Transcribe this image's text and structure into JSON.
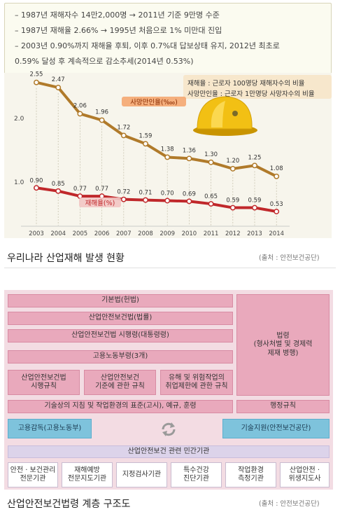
{
  "notes": [
    "– 1987년 재해자수 14만2,000명 → 2011년 기준 9만명 수준",
    "– 1987년 재해율 2.66% → 1995년 처음으로 1% 미만대 진입",
    "– 2003년 0.90%까지 재해율 후퇴, 이후 0.7%대 답보상태 유지, 2012년 최초로",
    "0.59% 달성 후 계속적으로 감소추세(2014년 0.53%)"
  ],
  "legend_box": {
    "line1": "재해율 : 근로자 100명당 재해자수의 비율",
    "line2": "사망만인율 : 근로자 1만명당 사망자수의 비율"
  },
  "colors": {
    "mortality": "#b07a2a",
    "injury": "#c0282b",
    "label_bg": "#f4a26a",
    "diagram_pink": "#e9a9bc",
    "diagram_blue": "#7ec3dc"
  },
  "chart_data": {
    "type": "line",
    "x": [
      "2003",
      "2004",
      "2005",
      "2006",
      "2007",
      "2008",
      "2009",
      "2010",
      "2011",
      "2012",
      "2013",
      "2014"
    ],
    "series": [
      {
        "name": "사망만인율(‱)",
        "values": [
          2.55,
          2.47,
          2.06,
          1.96,
          1.72,
          1.59,
          1.38,
          1.36,
          1.3,
          1.2,
          1.25,
          1.08
        ]
      },
      {
        "name": "재해율(%)",
        "values": [
          0.9,
          0.85,
          0.77,
          0.77,
          0.72,
          0.71,
          0.7,
          0.69,
          0.65,
          0.59,
          0.59,
          0.53
        ]
      }
    ],
    "yticks": [
      "1.0",
      "2.0"
    ],
    "ylim": [
      0.3,
      2.7
    ]
  },
  "caption1": "우리나라 산업재해 발생 현황",
  "source1": "(출처 : 안전보건공단)",
  "diagram": {
    "law": "기본법(헌법)",
    "act": "산업안전보건법(법률)",
    "decree": "산업안전보건법 시행령(대통령령)",
    "rule": "고용노동부령(3개)",
    "rules3": [
      [
        "산업안전보건법",
        "시행규칙"
      ],
      [
        "산업안전보건",
        "기준에 관한 규칙"
      ],
      [
        "유해 및 위험작업의",
        "취업제한에 관한 규칙"
      ]
    ],
    "standards": "기술상의 지침 및 작업환경의 표준(고시), 예규, 훈령",
    "penalty": [
      "법령",
      "(형사처벌 및 경제력",
      "제재 병행)"
    ],
    "admin": "행정규칙",
    "supervision": "고용감독(고용노동부)",
    "support": "기술지원(안전보건공단)",
    "private": "산업안전보건 관련 민간기관",
    "orgs": [
      [
        "안전 · 보건관리",
        "전문기관"
      ],
      [
        "재해예방",
        "전문지도기관"
      ],
      [
        "지정검사기관"
      ],
      [
        "특수건강",
        "진단기관"
      ],
      [
        "작업환경",
        "측정기관"
      ],
      [
        "산업안전 ·",
        "위생지도사"
      ]
    ]
  },
  "caption2": "산업안전보건법령 계층 구조도",
  "source2": "(출처 : 안전보건공단)"
}
